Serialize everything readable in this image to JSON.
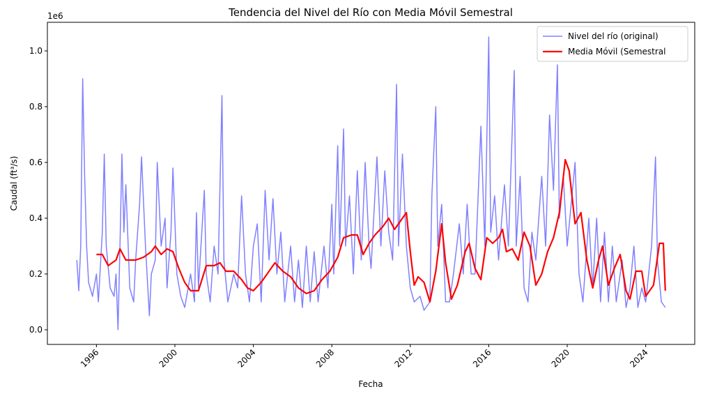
{
  "chart_data": {
    "type": "line",
    "title": "Tendencia del Nivel del Río con Media Móvil Semestral",
    "xlabel": "Fecha",
    "ylabel": "Caudal (ft³/s)",
    "y_offset_label": "1e6",
    "xlim": [
      1993.5,
      2026.5
    ],
    "ylim": [
      -0.0525,
      1.1025
    ],
    "xticks": [
      1996,
      2000,
      2004,
      2008,
      2012,
      2016,
      2020,
      2024
    ],
    "yticks": [
      {
        "value": 0,
        "label": "0.0"
      },
      0.2,
      0.4,
      0.6,
      0.8,
      {
        "value": 1,
        "label": "1.0"
      }
    ],
    "legend": "upper right",
    "series": [
      {
        "name": "Nivel del río (original)",
        "color": "#8080ff",
        "width": 1.5,
        "x": [
          1995.0,
          1995.1,
          1995.2,
          1995.3,
          1995.4,
          1995.5,
          1995.6,
          1995.8,
          1996.0,
          1996.1,
          1996.3,
          1996.4,
          1996.5,
          1996.7,
          1996.9,
          1997.0,
          1997.1,
          1997.2,
          1997.3,
          1997.4,
          1997.5,
          1997.7,
          1997.9,
          1998.0,
          1998.2,
          1998.3,
          1998.5,
          1998.7,
          1998.8,
          1999.0,
          1999.1,
          1999.3,
          1999.5,
          1999.6,
          1999.8,
          1999.9,
          2000.1,
          2000.3,
          2000.5,
          2000.8,
          2001.0,
          2001.1,
          2001.2,
          2001.5,
          2001.6,
          2001.8,
          2002.0,
          2002.2,
          2002.4,
          2002.5,
          2002.7,
          2003.0,
          2003.2,
          2003.4,
          2003.6,
          2003.8,
          2004.0,
          2004.2,
          2004.4,
          2004.6,
          2004.8,
          2005.0,
          2005.2,
          2005.4,
          2005.6,
          2005.9,
          2006.1,
          2006.3,
          2006.5,
          2006.7,
          2006.9,
          2007.1,
          2007.3,
          2007.6,
          2007.8,
          2008.0,
          2008.1,
          2008.3,
          2008.4,
          2008.6,
          2008.7,
          2008.9,
          2009.1,
          2009.3,
          2009.5,
          2009.7,
          2009.9,
          2010.0,
          2010.3,
          2010.5,
          2010.7,
          2010.9,
          2011.1,
          2011.3,
          2011.4,
          2011.6,
          2011.8,
          2012.0,
          2012.2,
          2012.5,
          2012.7,
          2013.0,
          2013.1,
          2013.3,
          2013.4,
          2013.6,
          2013.8,
          2014.0,
          2014.2,
          2014.5,
          2014.7,
          2014.9,
          2015.1,
          2015.3,
          2015.6,
          2015.8,
          2016.0,
          2016.1,
          2016.3,
          2016.5,
          2016.8,
          2017.0,
          2017.3,
          2017.4,
          2017.6,
          2017.8,
          2018.0,
          2018.2,
          2018.4,
          2018.7,
          2018.9,
          2019.1,
          2019.3,
          2019.5,
          2019.6,
          2019.8,
          2020.0,
          2020.2,
          2020.4,
          2020.6,
          2020.8,
          2021.0,
          2021.1,
          2021.3,
          2021.5,
          2021.7,
          2021.9,
          2022.1,
          2022.3,
          2022.5,
          2022.8,
          2023.0,
          2023.2,
          2023.4,
          2023.6,
          2023.8,
          2024.0,
          2024.3,
          2024.5,
          2024.6,
          2024.8,
          2025.0
        ],
        "values": [
          0.25,
          0.14,
          0.3,
          0.9,
          0.55,
          0.3,
          0.17,
          0.12,
          0.2,
          0.1,
          0.35,
          0.63,
          0.3,
          0.15,
          0.12,
          0.2,
          0.0,
          0.3,
          0.63,
          0.35,
          0.52,
          0.15,
          0.1,
          0.25,
          0.45,
          0.62,
          0.3,
          0.05,
          0.2,
          0.25,
          0.6,
          0.3,
          0.4,
          0.15,
          0.35,
          0.58,
          0.2,
          0.12,
          0.08,
          0.2,
          0.1,
          0.42,
          0.15,
          0.5,
          0.2,
          0.1,
          0.3,
          0.2,
          0.84,
          0.25,
          0.1,
          0.2,
          0.15,
          0.48,
          0.2,
          0.1,
          0.3,
          0.38,
          0.1,
          0.5,
          0.25,
          0.47,
          0.2,
          0.35,
          0.1,
          0.3,
          0.1,
          0.25,
          0.08,
          0.3,
          0.1,
          0.28,
          0.1,
          0.3,
          0.15,
          0.45,
          0.2,
          0.66,
          0.3,
          0.72,
          0.3,
          0.48,
          0.2,
          0.57,
          0.25,
          0.6,
          0.3,
          0.22,
          0.62,
          0.3,
          0.57,
          0.35,
          0.25,
          0.88,
          0.3,
          0.63,
          0.3,
          0.15,
          0.1,
          0.12,
          0.07,
          0.1,
          0.48,
          0.8,
          0.3,
          0.45,
          0.1,
          0.1,
          0.2,
          0.38,
          0.2,
          0.45,
          0.2,
          0.2,
          0.73,
          0.3,
          1.05,
          0.35,
          0.48,
          0.25,
          0.52,
          0.3,
          0.93,
          0.3,
          0.55,
          0.15,
          0.1,
          0.35,
          0.25,
          0.55,
          0.3,
          0.77,
          0.5,
          0.95,
          0.4,
          0.55,
          0.3,
          0.45,
          0.6,
          0.2,
          0.1,
          0.3,
          0.4,
          0.15,
          0.4,
          0.1,
          0.35,
          0.1,
          0.3,
          0.1,
          0.25,
          0.08,
          0.15,
          0.3,
          0.08,
          0.15,
          0.1,
          0.3,
          0.62,
          0.25,
          0.1,
          0.08
        ]
      },
      {
        "name": "Media Móvil (Semestral",
        "color": "#ff0000",
        "width": 2.2,
        "x": [
          1996.0,
          1996.3,
          1996.6,
          1997.0,
          1997.2,
          1997.5,
          1998.0,
          1998.4,
          1998.8,
          1999.0,
          1999.3,
          1999.6,
          1999.9,
          2000.2,
          2000.5,
          2000.8,
          2001.2,
          2001.6,
          2002.0,
          2002.3,
          2002.6,
          2003.0,
          2003.4,
          2003.7,
          2004.0,
          2004.4,
          2004.8,
          2005.1,
          2005.5,
          2005.9,
          2006.3,
          2006.7,
          2007.1,
          2007.5,
          2007.9,
          2008.3,
          2008.6,
          2009.0,
          2009.3,
          2009.6,
          2009.9,
          2010.2,
          2010.6,
          2010.9,
          2011.2,
          2011.5,
          2011.8,
          2012.0,
          2012.2,
          2012.4,
          2012.7,
          2013.0,
          2013.3,
          2013.6,
          2013.8,
          2014.1,
          2014.4,
          2014.8,
          2015.0,
          2015.3,
          2015.6,
          2015.9,
          2016.2,
          2016.5,
          2016.7,
          2016.9,
          2017.2,
          2017.5,
          2017.8,
          2018.1,
          2018.4,
          2018.7,
          2019.0,
          2019.3,
          2019.6,
          2019.9,
          2020.1,
          2020.4,
          2020.7,
          2021.0,
          2021.3,
          2021.6,
          2021.8,
          2022.1,
          2022.4,
          2022.7,
          2023.0,
          2023.2,
          2023.5,
          2023.8,
          2024.0,
          2024.4,
          2024.7,
          2024.9,
          2025.0
        ],
        "values": [
          0.27,
          0.27,
          0.23,
          0.25,
          0.29,
          0.25,
          0.25,
          0.26,
          0.28,
          0.3,
          0.27,
          0.29,
          0.28,
          0.22,
          0.17,
          0.14,
          0.14,
          0.23,
          0.23,
          0.24,
          0.21,
          0.21,
          0.18,
          0.15,
          0.14,
          0.17,
          0.21,
          0.24,
          0.21,
          0.19,
          0.15,
          0.13,
          0.14,
          0.18,
          0.21,
          0.26,
          0.33,
          0.34,
          0.34,
          0.27,
          0.31,
          0.34,
          0.37,
          0.4,
          0.36,
          0.39,
          0.42,
          0.28,
          0.16,
          0.19,
          0.17,
          0.1,
          0.21,
          0.38,
          0.24,
          0.11,
          0.16,
          0.28,
          0.31,
          0.22,
          0.18,
          0.33,
          0.31,
          0.33,
          0.36,
          0.28,
          0.29,
          0.25,
          0.35,
          0.3,
          0.16,
          0.2,
          0.28,
          0.33,
          0.42,
          0.61,
          0.57,
          0.38,
          0.42,
          0.25,
          0.15,
          0.25,
          0.3,
          0.16,
          0.22,
          0.27,
          0.14,
          0.11,
          0.21,
          0.21,
          0.12,
          0.16,
          0.31,
          0.31,
          0.14
        ]
      }
    ]
  }
}
